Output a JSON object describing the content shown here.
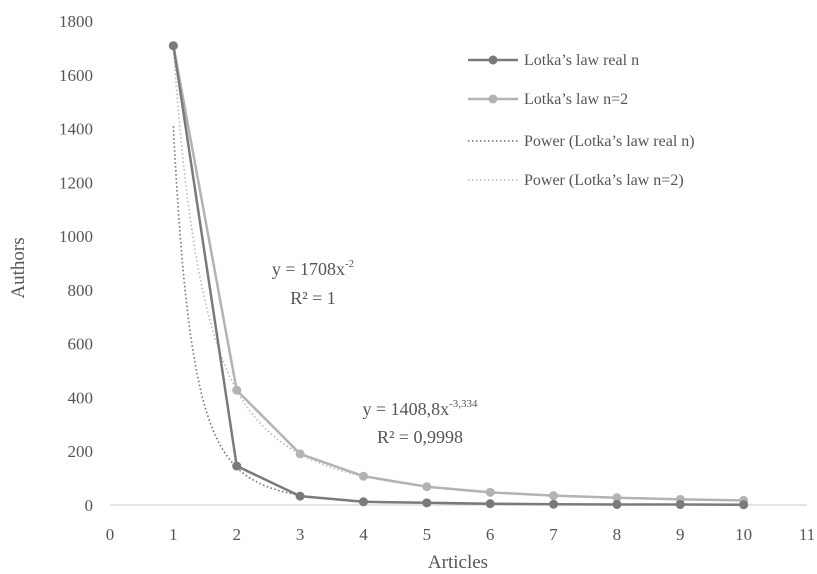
{
  "chart_data": {
    "type": "line",
    "xlabel": "Articles",
    "ylabel": "Authors",
    "xlim": [
      0,
      11
    ],
    "ylim": [
      0,
      1800
    ],
    "x_ticks": [
      "0",
      "1",
      "2",
      "3",
      "4",
      "5",
      "6",
      "7",
      "8",
      "9",
      "10",
      "11"
    ],
    "y_ticks": [
      "0",
      "200",
      "400",
      "600",
      "800",
      "1000",
      "1200",
      "1400",
      "1600",
      "1800"
    ],
    "grid": false,
    "legend_position": "top-right",
    "series": [
      {
        "name": "Lotka’s  law real n",
        "style": "solid-marker",
        "color": "#7a7a7a",
        "x": [
          1,
          2,
          3,
          4,
          5,
          6,
          7,
          8,
          9,
          10
        ],
        "values": [
          1708,
          145,
          33,
          12,
          8,
          5,
          3,
          2,
          2,
          1
        ]
      },
      {
        "name": "Lotka’s  law n=2",
        "style": "solid-marker",
        "color": "#b3b3b3",
        "x": [
          1,
          2,
          3,
          4,
          5,
          6,
          7,
          8,
          9,
          10
        ],
        "values": [
          1708,
          427,
          190,
          107,
          68,
          47,
          35,
          27,
          21,
          17
        ]
      },
      {
        "name": "Power (Lotka’s  law real n)",
        "style": "dotted",
        "color": "#6e6e6e",
        "fit": {
          "a": 1408.8,
          "b": -3.334,
          "x_from": 1,
          "x_to": 3
        }
      },
      {
        "name": "Power (Lotka’s  law n=2)",
        "style": "dotted",
        "color": "#b8b8b8",
        "fit": {
          "a": 1708,
          "b": -2,
          "x_from": 1,
          "x_to": 10
        }
      }
    ],
    "annotations": [
      {
        "base": "y = 1708x",
        "sup": "-2",
        "line2": "R² = 1"
      },
      {
        "base": "y = 1408,8x",
        "sup": "-3,334",
        "line2": "R² = 0,9998"
      }
    ]
  }
}
